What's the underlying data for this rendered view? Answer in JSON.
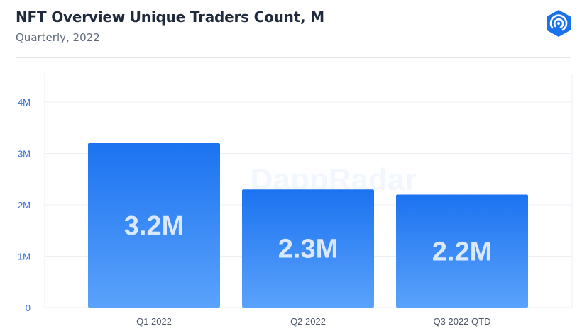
{
  "header": {
    "title": "NFT Overview Unique Traders Count, M",
    "subtitle": "Quarterly, 2022",
    "logo_icon": "dappradar-logo-icon"
  },
  "watermark": "DappRadar",
  "colors": {
    "bar_top": "#1c73f0",
    "bar_bottom": "#5aa2fb",
    "bar_label": "#dbe9ff",
    "axis_text": "#2f6fd6",
    "grid": "#eceff4",
    "logo": "#1a73e8"
  },
  "chart_data": {
    "type": "bar",
    "title": "NFT Overview Unique Traders Count, M",
    "subtitle": "Quarterly, 2022",
    "categories": [
      "Q1 2022",
      "Q2 2022",
      "Q3 2022 QTD"
    ],
    "values": [
      3.2,
      2.3,
      2.2
    ],
    "data_labels": [
      "3.2M",
      "2.3M",
      "2.2M"
    ],
    "yticks": [
      0,
      1,
      2,
      3,
      4
    ],
    "ytick_labels": [
      "0",
      "1M",
      "2M",
      "3M",
      "4M"
    ],
    "ylim": [
      0,
      4.4
    ],
    "grid": true,
    "legend": "none"
  }
}
